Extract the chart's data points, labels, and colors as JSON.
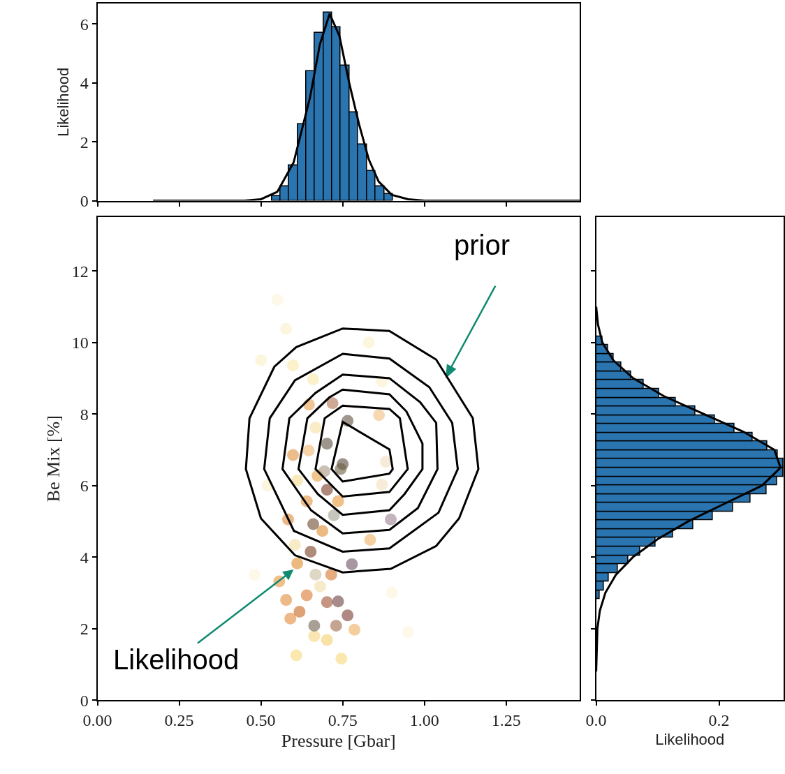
{
  "chart_data": [
    {
      "type": "histogram",
      "ylabel": "Likelihood",
      "xlim": [
        0,
        1.475
      ],
      "ylim": [
        0,
        6.7
      ],
      "xticks": [
        {
          "value": 0,
          "label": null
        },
        {
          "value": 0.25,
          "label": null
        },
        {
          "value": 0.5,
          "label": null
        },
        {
          "value": 0.75,
          "label": null
        },
        {
          "value": 1.0,
          "label": null
        },
        {
          "value": 1.25,
          "label": null
        }
      ],
      "yticks": [
        0,
        2,
        4,
        6
      ],
      "tick_labels": "y",
      "series": [
        {
          "type": "histogram",
          "color": "#2a74b0",
          "bins": [
            0.533,
            0.559,
            0.586,
            0.612,
            0.639,
            0.665,
            0.692,
            0.718,
            0.744,
            0.771,
            0.797,
            0.824,
            0.85,
            0.877,
            0.903
          ],
          "values": [
            0.16,
            0.48,
            1.2,
            2.6,
            4.4,
            5.7,
            6.4,
            5.9,
            4.6,
            3.0,
            1.9,
            1.0,
            0.48,
            0.22
          ]
        },
        {
          "type": "line",
          "color": "#000000",
          "x": [
            0.17,
            0.45,
            0.5,
            0.55,
            0.6,
            0.65,
            0.68,
            0.71,
            0.74,
            0.77,
            0.8,
            0.83,
            0.86,
            0.9,
            0.95,
            1.0,
            1.475
          ],
          "values": [
            0,
            0,
            0.05,
            0.3,
            1.3,
            3.5,
            5.3,
            6.35,
            5.6,
            4.0,
            2.6,
            1.4,
            0.65,
            0.2,
            0.05,
            0,
            0
          ]
        }
      ]
    },
    {
      "type": "scatter",
      "xlabel": "Pressure [Gbar]",
      "ylabel": "Be Mix [%]",
      "xlim": [
        0,
        1.475
      ],
      "ylim": [
        0,
        13.5
      ],
      "xticks": [
        {
          "value": 0,
          "label": "0.00"
        },
        {
          "value": 0.25,
          "label": "0.25"
        },
        {
          "value": 0.5,
          "label": "0.50"
        },
        {
          "value": 0.75,
          "label": "0.75"
        },
        {
          "value": 1.0,
          "label": "1.00"
        },
        {
          "value": 1.25,
          "label": "1.25"
        }
      ],
      "yticks": [
        0,
        2,
        4,
        6,
        8,
        10,
        12
      ],
      "annotations": [
        "prior",
        {
          "text": "Likelihood",
          "x": 0.6,
          "y": 3.65
        }
      ],
      "series": [
        {
          "type": "scatter",
          "marker": "circle",
          "x": [
            0.608,
            0.746,
            0.702,
            0.663,
            0.786,
            0.59,
            0.663,
            0.73,
            0.765,
            0.618,
            0.556,
            0.577,
            0.64,
            0.702,
            0.736,
            0.681,
            0.611,
            0.667,
            0.715,
            0.778,
            0.652,
            0.834,
            0.604,
            0.688,
            0.583,
            0.66,
            0.723,
            0.897,
            0.64,
            0.702,
            0.736,
            0.611,
            0.673,
            0.598,
            0.694,
            0.75,
            0.646,
            0.882,
            0.702,
            0.667,
            0.647,
            0.719,
            0.861,
            0.765,
            0.598,
            0.66,
            0.577,
            0.744,
            0.87,
            0.5,
            0.55,
            0.83,
            0.52,
            0.9,
            0.48,
            0.87,
            0.95
          ],
          "values": [
            1.25,
            1.16,
            1.68,
            1.79,
            1.97,
            2.28,
            2.08,
            2.08,
            2.37,
            2.47,
            3.32,
            2.8,
            2.93,
            2.74,
            2.76,
            3.18,
            3.82,
            3.51,
            3.51,
            3.8,
            4.15,
            4.48,
            4.34,
            4.73,
            5.05,
            4.92,
            5.17,
            5.05,
            5.56,
            5.88,
            5.56,
            6.14,
            6.27,
            6.85,
            6.4,
            6.6,
            6.98,
            6.66,
            7.17,
            7.62,
            8.26,
            8.3,
            7.97,
            7.81,
            9.36,
            8.97,
            10.38,
            6.46,
            6.02,
            9.5,
            11.2,
            10.0,
            6.0,
            3.0,
            3.5,
            8.9,
            1.9
          ],
          "colors": [
            "#f7d878",
            "#f7d878",
            "#f5cf6a",
            "#f5d580",
            "#eeae5c",
            "#e3883a",
            "#6e6050",
            "#a0684a",
            "#7a3a30",
            "#c8641e",
            "#e8953e",
            "#e08a3a",
            "#d9782e",
            "#9c5030",
            "#6a4040",
            "#f0dca8",
            "#e08a2a",
            "#c8bca0",
            "#d4742a",
            "#6e5060",
            "#7a4020",
            "#f0b060",
            "#f3e0a0",
            "#e08a30",
            "#e0883a",
            "#6a4a30",
            "#a0a090",
            "#9a8090",
            "#e0903a",
            "#7a3a20",
            "#e8983a",
            "#f5dc90",
            "#e8a040",
            "#e0903a",
            "#a89880",
            "#5a4a40",
            "#f0b870",
            "#f3dcc0",
            "#5a5040",
            "#f5e0a0",
            "#e8a050",
            "#b07050",
            "#f0c080",
            "#605040",
            "#f8e8a8",
            "#f8e8a8",
            "#fbf0c8",
            "#6a6040",
            "#f3e0c0",
            "#fbf0c8",
            "#fcf4d8",
            "#fbf0c8",
            "#fbf0c8",
            "#fcf4d8",
            "#fcf4d8",
            "#fbf0c8",
            "#fcf4d8"
          ]
        }
      ]
    },
    {
      "type": "histogram",
      "orientation": "horizontal",
      "xlabel": "Likelihood",
      "xlim": [
        0,
        0.305
      ],
      "ylim": [
        0,
        13.5
      ],
      "xticks": [
        {
          "value": 0,
          "label": "0.0"
        },
        {
          "value": 0.2,
          "label": "0.2"
        }
      ],
      "yticks": [
        {
          "value": 0,
          "label": null
        },
        {
          "value": 2,
          "label": null
        },
        {
          "value": 4,
          "label": null
        },
        {
          "value": 6,
          "label": null
        },
        {
          "value": 8,
          "label": null
        },
        {
          "value": 10,
          "label": null
        },
        {
          "value": 12,
          "label": null
        }
      ],
      "tick_labels": "x",
      "series": [
        {
          "type": "histogram",
          "color": "#2a74b0",
          "bins": [
            2.82,
            3.065,
            3.31,
            3.555,
            3.8,
            4.045,
            4.29,
            4.535,
            4.78,
            5.025,
            5.27,
            5.515,
            5.76,
            6.005,
            6.25,
            6.495,
            6.74,
            6.985,
            7.23,
            7.475,
            7.72,
            7.965,
            8.21,
            8.455,
            8.7,
            8.945,
            9.19,
            9.435,
            9.68,
            9.925,
            10.17
          ],
          "values": [
            0.006,
            0.012,
            0.02,
            0.035,
            0.052,
            0.072,
            0.097,
            0.125,
            0.158,
            0.19,
            0.223,
            0.251,
            0.277,
            0.294,
            0.304,
            0.304,
            0.295,
            0.278,
            0.254,
            0.225,
            0.193,
            0.161,
            0.13,
            0.102,
            0.077,
            0.057,
            0.041,
            0.028,
            0.019,
            0.01
          ]
        },
        {
          "type": "line",
          "color": "#000000",
          "x": [
            0.8,
            2,
            2.5,
            3,
            3.5,
            4,
            4.5,
            5,
            5.5,
            6,
            6.5,
            7,
            7.5,
            8,
            8.5,
            9,
            9.5,
            10,
            10.5,
            11
          ],
          "values": [
            0,
            0.002,
            0.006,
            0.015,
            0.032,
            0.06,
            0.1,
            0.15,
            0.21,
            0.27,
            0.3,
            0.29,
            0.24,
            0.175,
            0.11,
            0.06,
            0.028,
            0.01,
            0.003,
            0
          ]
        }
      ]
    }
  ]
}
